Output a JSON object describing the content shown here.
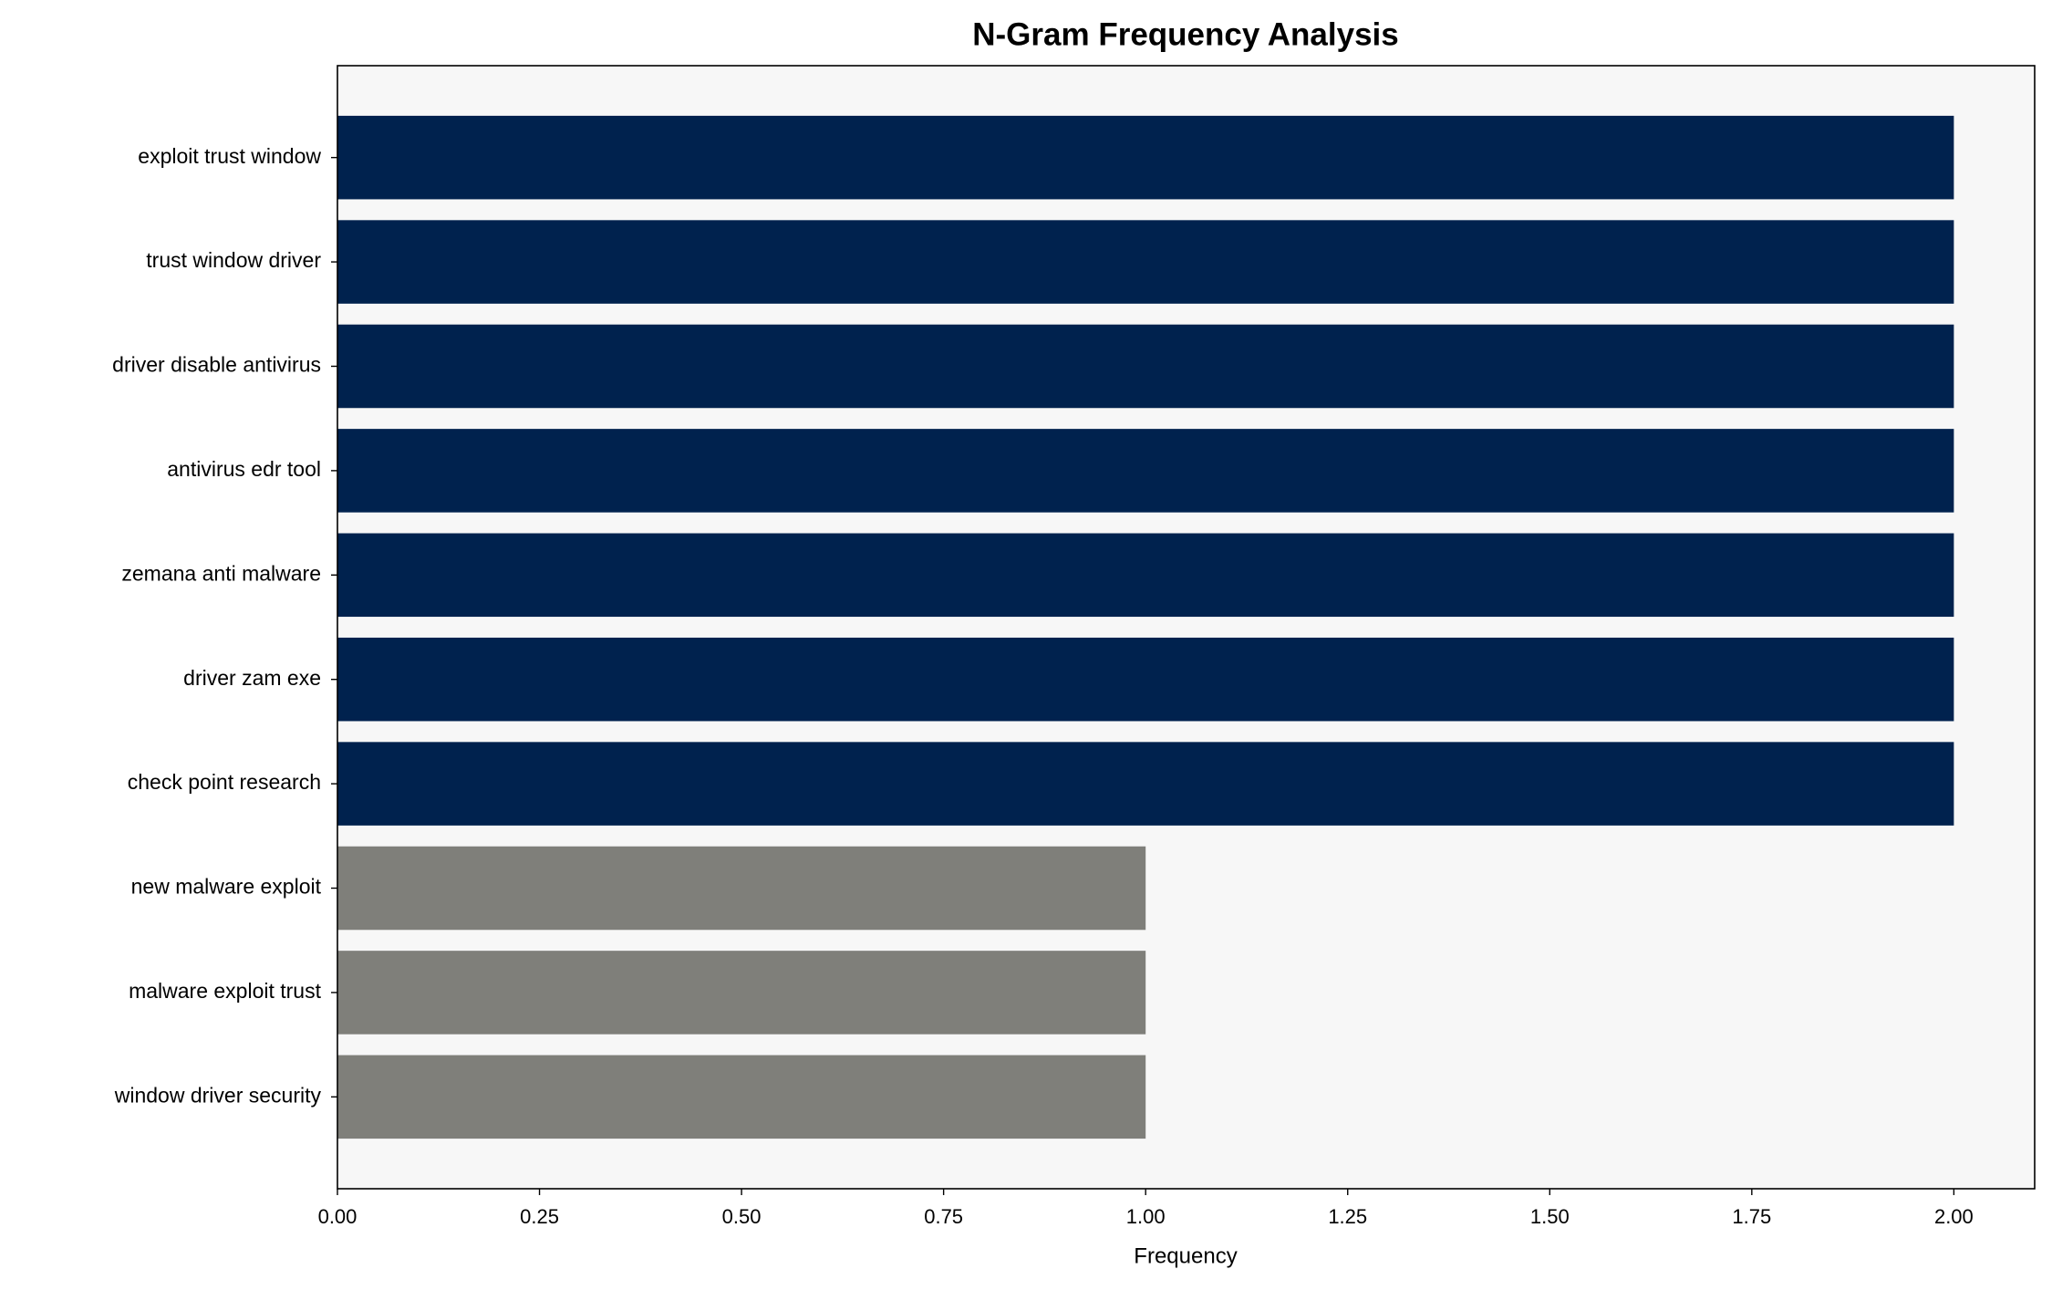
{
  "chart_data": {
    "type": "barh",
    "title": "N-Gram Frequency Analysis",
    "xlabel": "Frequency",
    "categories": [
      "exploit trust window",
      "trust window driver",
      "driver disable antivirus",
      "antivirus edr tool",
      "zemana anti malware",
      "driver zam exe",
      "check point research",
      "new malware exploit",
      "malware exploit trust",
      "window driver security"
    ],
    "values": [
      2,
      2,
      2,
      2,
      2,
      2,
      2,
      1,
      1,
      1
    ],
    "colors": [
      "#00224e",
      "#00224e",
      "#00224e",
      "#00224e",
      "#00224e",
      "#00224e",
      "#00224e",
      "#7f7f7a",
      "#7f7f7a",
      "#7f7f7a"
    ],
    "xlim": [
      0,
      2.1
    ],
    "xticks": [
      {
        "value": 0,
        "label": "0.00"
      },
      {
        "value": 0.25,
        "label": "0.25"
      },
      {
        "value": 0.5,
        "label": "0.50"
      },
      {
        "value": 0.75,
        "label": "0.75"
      },
      {
        "value": 1,
        "label": "1.00"
      },
      {
        "value": 1.25,
        "label": "1.25"
      },
      {
        "value": 1.5,
        "label": "1.50"
      },
      {
        "value": 1.75,
        "label": "1.75"
      },
      {
        "value": 2,
        "label": "2.00"
      }
    ],
    "grid": false
  }
}
